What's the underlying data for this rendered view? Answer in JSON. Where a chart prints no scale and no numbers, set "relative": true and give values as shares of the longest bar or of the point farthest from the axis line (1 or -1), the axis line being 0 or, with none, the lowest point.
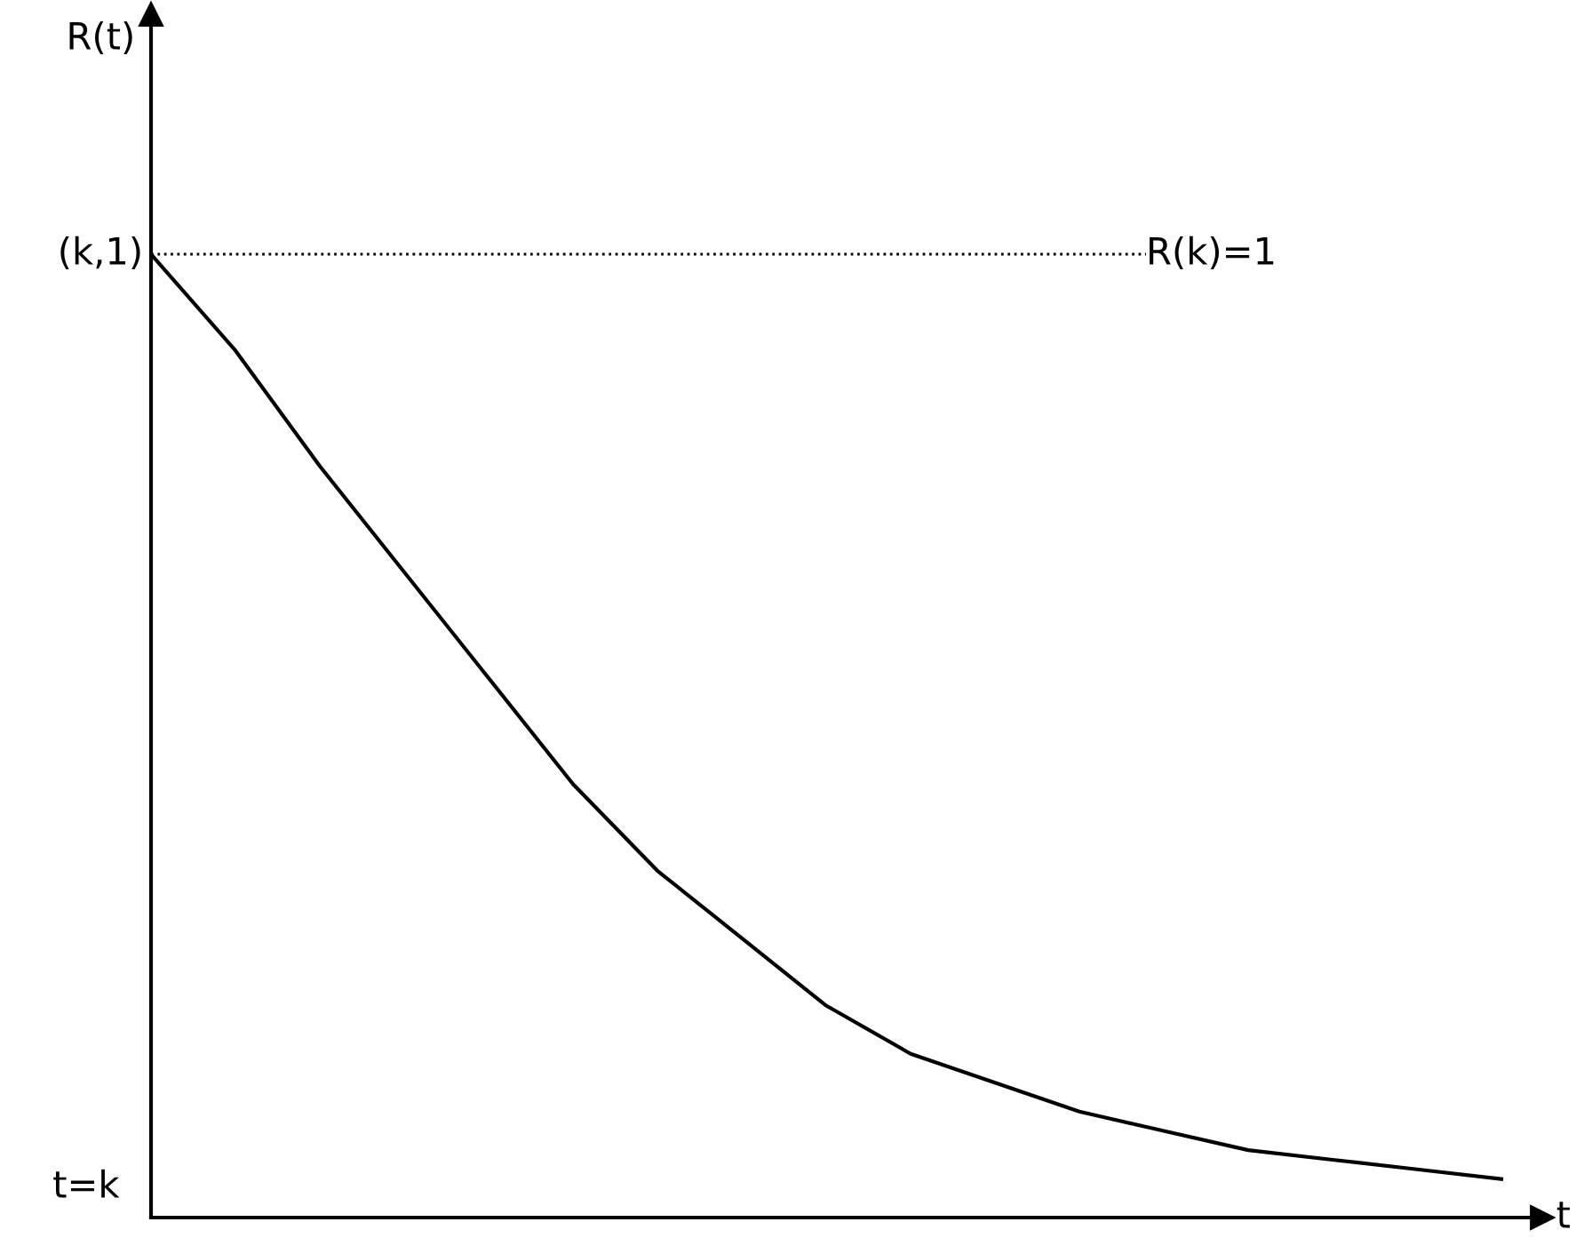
{
  "chart_data": {
    "type": "line",
    "relative": true,
    "xlabel": "t",
    "categories": [
      null,
      null,
      null,
      null,
      null,
      null,
      null,
      null,
      null,
      null,
      null,
      null,
      null,
      null,
      null,
      null,
      null
    ],
    "series": [
      {
        "color": "#000000",
        "values": [
          1.0,
          0.9,
          0.78,
          0.67,
          0.56,
          0.45,
          0.36,
          0.29,
          0.22,
          0.17,
          0.14,
          0.11,
          0.09,
          0.07,
          0.06,
          0.05,
          0.04
        ]
      }
    ],
    "ref_lines": [
      {
        "axis": "y",
        "value": 1,
        "label": "R(k)=1",
        "color": "#000000",
        "line_style": "dotted"
      }
    ],
    "annotations": [
      "R(t)",
      "(k,1)",
      "t=k"
    ],
    "tick_labels": false,
    "marker": "none",
    "line_style": "solid"
  }
}
